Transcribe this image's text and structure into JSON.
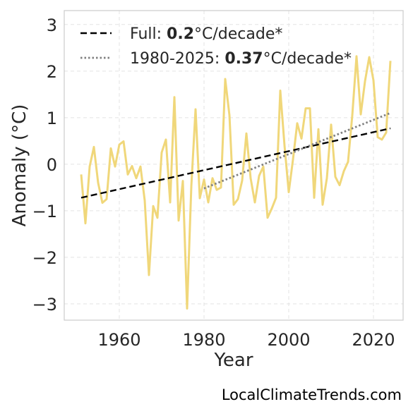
{
  "chart_data": {
    "type": "line",
    "xlabel": "Year",
    "ylabel": "Anomaly (°C)",
    "xlim": [
      1947,
      2027
    ],
    "ylim": [
      -3.35,
      3.3
    ],
    "xticks": [
      1960,
      1980,
      2000,
      2020
    ],
    "yticks": [
      -3,
      -2,
      -1,
      0,
      1,
      2,
      3
    ],
    "xtick_labels": [
      "1960",
      "1980",
      "2000",
      "2020"
    ],
    "ytick_labels": [
      "−3",
      "−2",
      "−1",
      "0",
      "1",
      "2",
      "3"
    ],
    "grid": true,
    "legend_position": "top-left",
    "colors": {
      "series": "#f0d77a",
      "full_trend": "#000000",
      "recent_trend": "#808080",
      "grid": "#e3e3e3",
      "frame": "#cccccc"
    },
    "series": [
      {
        "x": [
          1951,
          1952,
          1953,
          1954,
          1955,
          1956,
          1957,
          1958,
          1959,
          1960,
          1961,
          1962,
          1963,
          1964,
          1965,
          1966,
          1967,
          1968,
          1969,
          1970,
          1971,
          1972,
          1973,
          1974,
          1975,
          1976,
          1977,
          1978,
          1979,
          1980,
          1981,
          1982,
          1983,
          1984,
          1985,
          1986,
          1987,
          1988,
          1989,
          1990,
          1991,
          1992,
          1993,
          1994,
          1995,
          1996,
          1997,
          1998,
          1999,
          2000,
          2001,
          2002,
          2003,
          2004,
          2005,
          2006,
          2007,
          2008,
          2009,
          2010,
          2011,
          2012,
          2013,
          2014,
          2015,
          2016,
          2017,
          2018,
          2019,
          2020,
          2021,
          2022,
          2023,
          2024
        ],
        "y": [
          -0.22,
          -1.27,
          -0.05,
          0.37,
          -0.4,
          -0.83,
          -0.75,
          0.34,
          -0.05,
          0.42,
          0.49,
          -0.22,
          -0.04,
          -0.3,
          -0.05,
          -0.78,
          -2.38,
          -0.9,
          -1.15,
          0.25,
          0.53,
          -0.82,
          1.44,
          -1.21,
          -0.36,
          -3.1,
          -0.47,
          1.18,
          -0.73,
          -0.33,
          -0.82,
          -0.3,
          -0.55,
          -0.5,
          1.83,
          1.05,
          -0.87,
          -0.75,
          -0.35,
          0.66,
          -0.3,
          -0.82,
          -0.25,
          -0.05,
          -1.15,
          -0.95,
          -0.72,
          1.58,
          0.4,
          -0.6,
          0.1,
          0.88,
          0.55,
          1.2,
          1.2,
          -0.72,
          0.75,
          -0.87,
          -0.3,
          0.85,
          -0.27,
          -0.45,
          -0.15,
          0.05,
          1.05,
          2.32,
          1.07,
          1.78,
          2.3,
          1.8,
          0.58,
          0.53,
          0.68,
          2.22
        ]
      }
    ],
    "trends": [
      {
        "name": "Full",
        "rate": "0.2",
        "unit": "°C/decade*",
        "x": [
          1951,
          2024
        ],
        "y": [
          -0.72,
          0.77
        ],
        "style": "dashed"
      },
      {
        "name": "1980-2025",
        "rate": "0.37",
        "unit": "°C/decade*",
        "x": [
          1980,
          2024
        ],
        "y": [
          -0.52,
          1.1
        ],
        "style": "dotted"
      }
    ]
  },
  "source_label": "LocalClimateTrends.com"
}
